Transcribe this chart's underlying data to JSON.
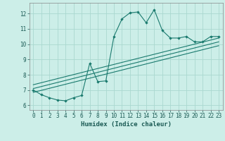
{
  "title": "",
  "xlabel": "Humidex (Indice chaleur)",
  "bg_color": "#cceee8",
  "grid_color": "#aad8d0",
  "line_color": "#1a7a6e",
  "xlim": [
    -0.5,
    23.5
  ],
  "ylim": [
    5.7,
    12.7
  ],
  "yticks": [
    6,
    7,
    8,
    9,
    10,
    11,
    12
  ],
  "xticks": [
    0,
    1,
    2,
    3,
    4,
    5,
    6,
    7,
    8,
    9,
    10,
    11,
    12,
    13,
    14,
    15,
    16,
    17,
    18,
    19,
    20,
    21,
    22,
    23
  ],
  "line1_x": [
    0,
    1,
    2,
    3,
    4,
    5,
    6,
    7,
    8,
    9,
    10,
    11,
    12,
    13,
    14,
    15,
    16,
    17,
    18,
    19,
    20,
    21,
    22,
    23
  ],
  "line1_y": [
    7.0,
    6.7,
    6.5,
    6.35,
    6.3,
    6.5,
    6.65,
    8.75,
    7.55,
    7.6,
    10.5,
    11.65,
    12.05,
    12.1,
    11.4,
    12.25,
    10.9,
    10.4,
    10.4,
    10.5,
    10.15,
    10.15,
    10.5,
    10.5
  ],
  "line2_x": [
    0,
    23
  ],
  "line2_y": [
    7.1,
    10.15
  ],
  "line3_x": [
    0,
    23
  ],
  "line3_y": [
    7.35,
    10.4
  ],
  "line4_x": [
    0,
    23
  ],
  "line4_y": [
    6.85,
    9.9
  ]
}
